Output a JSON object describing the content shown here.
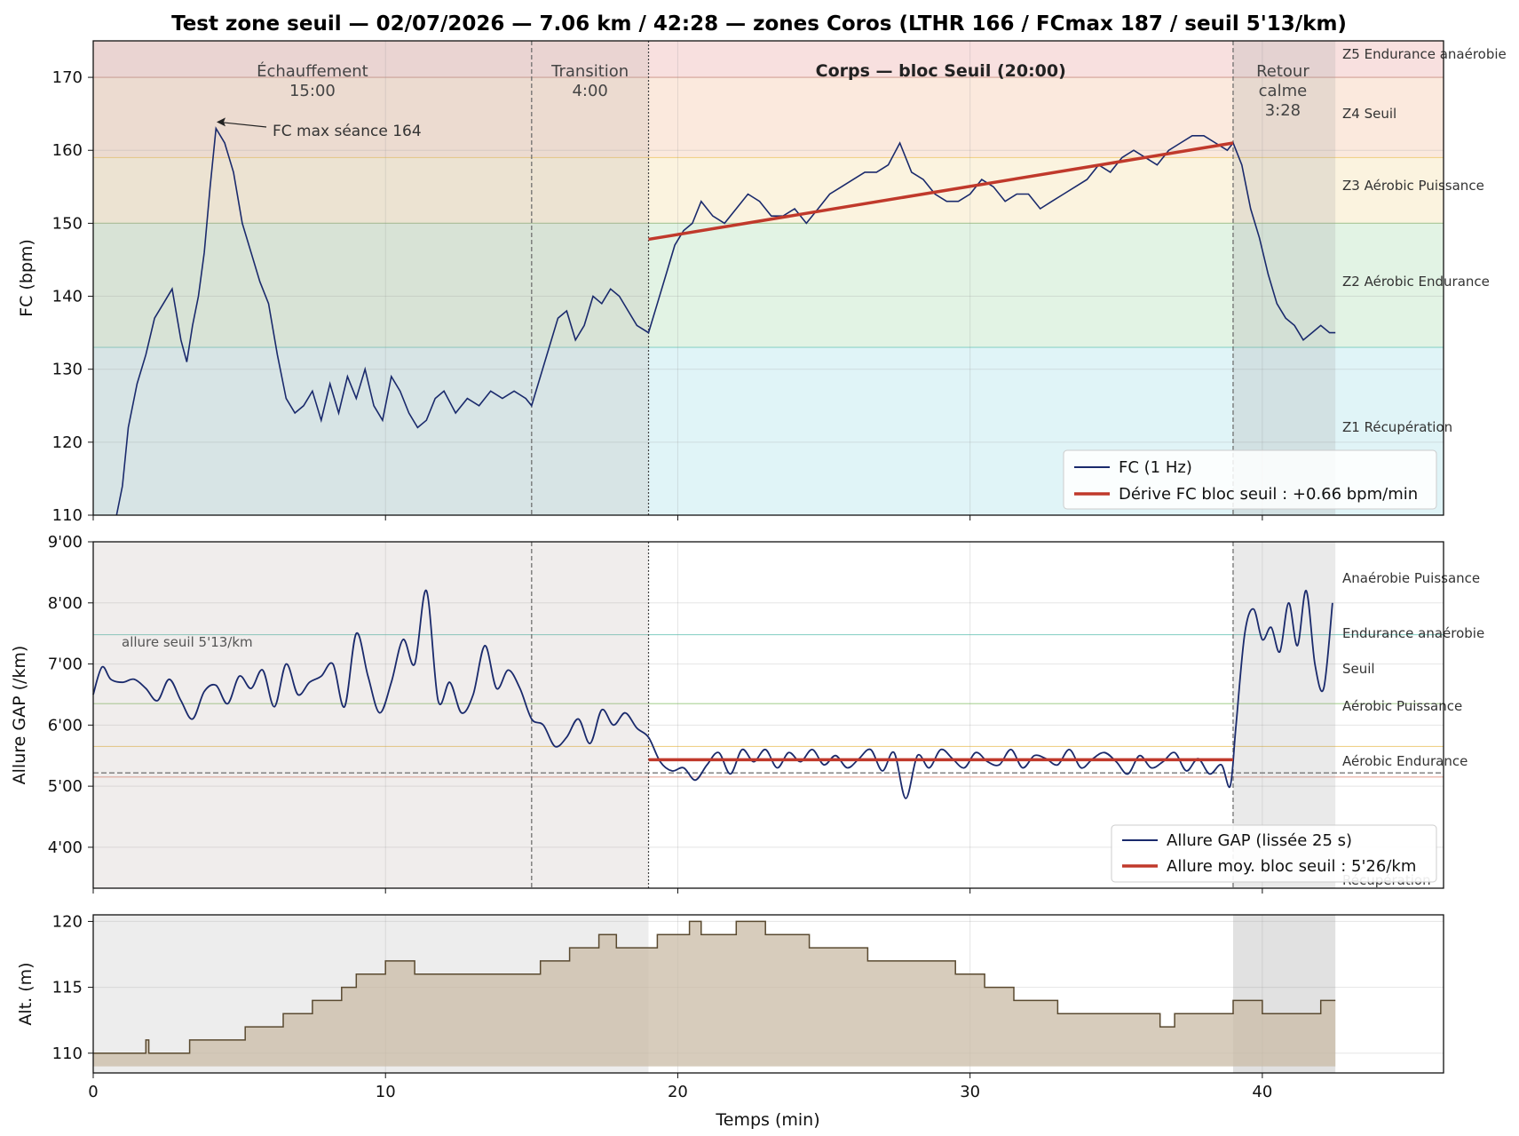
{
  "title": "Test zone seuil — 02/07/2026 — 7.06 km / 42:28 — zones Coros (LTHR 166 / FCmax 187 / seuil 5'13/km)",
  "x_axis": {
    "label": "Temps (min)",
    "range": [
      0,
      46.2
    ],
    "ticks": [
      0,
      10,
      20,
      30,
      40
    ],
    "tick_labels": [
      "0",
      "10",
      "20",
      "30",
      "40"
    ]
  },
  "phases": [
    {
      "name": "Échauffement",
      "duration": "15:00",
      "start": 0,
      "end": 15
    },
    {
      "name": "Transition",
      "duration": "4:00",
      "start": 15,
      "end": 19
    },
    {
      "name": "Corps — bloc Seuil (20:00)",
      "duration": "",
      "start": 19,
      "end": 39
    },
    {
      "name": "Retour",
      "name2": "calme",
      "duration": "3:28",
      "start": 39,
      "end": 42.5
    }
  ],
  "colors": {
    "hr_line": "#1a2a6c",
    "trend": "#c0392b",
    "alt_fill": "#c9bba5",
    "alt_line": "#5a4a30",
    "z1": "#e0f4f7",
    "z2": "#e2f3e4",
    "z3": "#fbf3df",
    "z4": "#fbe9dd",
    "z5": "#f8e0df"
  },
  "chart_data": [
    {
      "type": "line",
      "panel": "fc",
      "ylabel": "FC (bpm)",
      "ylim": [
        110,
        175
      ],
      "yticks": [
        110,
        120,
        130,
        140,
        150,
        160,
        170
      ],
      "zones": [
        {
          "name": "Z1 Récupération",
          "from": 110,
          "to": 133
        },
        {
          "name": "Z2 Aérobic Endurance",
          "from": 133,
          "to": 150
        },
        {
          "name": "Z3 Aérobic Puissance",
          "from": 150,
          "to": 159
        },
        {
          "name": "Z4 Seuil",
          "from": 159,
          "to": 170
        },
        {
          "name": "Z5 Endurance anaérobie",
          "from": 170,
          "to": 175
        }
      ],
      "series": [
        {
          "name": "FC (1 Hz)",
          "x": [
            0.8,
            1.0,
            1.2,
            1.5,
            1.8,
            2.1,
            2.4,
            2.7,
            3.0,
            3.2,
            3.4,
            3.6,
            3.8,
            4.0,
            4.2,
            4.5,
            4.8,
            5.1,
            5.4,
            5.7,
            6.0,
            6.3,
            6.6,
            6.9,
            7.2,
            7.5,
            7.8,
            8.1,
            8.4,
            8.7,
            9.0,
            9.3,
            9.6,
            9.9,
            10.2,
            10.5,
            10.8,
            11.1,
            11.4,
            11.7,
            12.0,
            12.4,
            12.8,
            13.2,
            13.6,
            14.0,
            14.4,
            14.8,
            15.0,
            15.3,
            15.6,
            15.9,
            16.2,
            16.5,
            16.8,
            17.1,
            17.4,
            17.7,
            18.0,
            18.3,
            18.6,
            19.0,
            19.3,
            19.6,
            19.9,
            20.2,
            20.5,
            20.8,
            21.2,
            21.6,
            22.0,
            22.4,
            22.8,
            23.2,
            23.6,
            24.0,
            24.4,
            24.8,
            25.2,
            25.6,
            26.0,
            26.4,
            26.8,
            27.2,
            27.6,
            28.0,
            28.4,
            28.8,
            29.2,
            29.6,
            30.0,
            30.4,
            30.8,
            31.2,
            31.6,
            32.0,
            32.4,
            32.8,
            33.2,
            33.6,
            34.0,
            34.4,
            34.8,
            35.2,
            35.6,
            36.0,
            36.4,
            36.8,
            37.2,
            37.6,
            38.0,
            38.4,
            38.8,
            39.0,
            39.3,
            39.6,
            39.9,
            40.2,
            40.5,
            40.8,
            41.1,
            41.4,
            41.7,
            42.0,
            42.3,
            42.5
          ],
          "values": [
            110,
            114,
            122,
            128,
            132,
            137,
            139,
            141,
            134,
            131,
            136,
            140,
            146,
            155,
            163,
            161,
            157,
            150,
            146,
            142,
            139,
            132,
            126,
            124,
            125,
            127,
            123,
            128,
            124,
            129,
            126,
            130,
            125,
            123,
            129,
            127,
            124,
            122,
            123,
            126,
            127,
            124,
            126,
            125,
            127,
            126,
            127,
            126,
            125,
            129,
            133,
            137,
            138,
            134,
            136,
            140,
            139,
            141,
            140,
            138,
            136,
            135,
            139,
            143,
            147,
            149,
            150,
            153,
            151,
            150,
            152,
            154,
            153,
            151,
            151,
            152,
            150,
            152,
            154,
            155,
            156,
            157,
            157,
            158,
            161,
            157,
            156,
            154,
            153,
            153,
            154,
            156,
            155,
            153,
            154,
            154,
            152,
            153,
            154,
            155,
            156,
            158,
            157,
            159,
            160,
            159,
            158,
            160,
            161,
            162,
            162,
            161,
            160,
            161,
            158,
            152,
            148,
            143,
            139,
            137,
            136,
            134,
            135,
            136,
            135,
            135
          ]
        },
        {
          "name": "Dérive FC bloc seuil : +0.66 bpm/min",
          "x": [
            19,
            39
          ],
          "values": [
            147.8,
            161.0
          ]
        }
      ],
      "annotations": [
        {
          "text": "FC max séance 164",
          "x": 4.1,
          "y": 164
        }
      ],
      "legend": "bottom-right"
    },
    {
      "type": "line",
      "panel": "allure",
      "ylabel": "Allure GAP (/km)",
      "ylim": [
        9.0,
        3.33
      ],
      "yticks": [
        4,
        5,
        6,
        7,
        8,
        9
      ],
      "ytick_labels": [
        "4'00",
        "5'00",
        "6'00",
        "7'00",
        "8'00",
        "9'00"
      ],
      "zones": [
        {
          "name": "Récupération",
          "from": 9.0,
          "to": 7.48
        },
        {
          "name": "Aérobic Endurance",
          "from": 7.48,
          "to": 6.35
        },
        {
          "name": "Aérobic Puissance",
          "from": 6.35,
          "to": 5.65
        },
        {
          "name": "Seuil",
          "from": 5.65,
          "to": 5.15
        },
        {
          "name": "Endurance anaérobie",
          "from": 5.15,
          "to": 4.6
        },
        {
          "name": "Anaérobie Puissance",
          "from": 4.6,
          "to": 3.33
        }
      ],
      "threshold": {
        "label": "allure seuil 5'13/km",
        "value": 5.217
      },
      "series": [
        {
          "name": "Allure GAP (lissée 25 s)",
          "x": [
            0,
            0.3,
            0.6,
            1.0,
            1.4,
            1.8,
            2.2,
            2.6,
            3.0,
            3.4,
            3.8,
            4.2,
            4.6,
            5.0,
            5.4,
            5.8,
            6.2,
            6.6,
            7.0,
            7.4,
            7.8,
            8.2,
            8.6,
            9.0,
            9.4,
            9.8,
            10.2,
            10.6,
            11.0,
            11.4,
            11.8,
            12.2,
            12.6,
            13.0,
            13.4,
            13.8,
            14.2,
            14.6,
            15.0,
            15.4,
            15.8,
            16.2,
            16.6,
            17.0,
            17.4,
            17.8,
            18.2,
            18.6,
            19.0,
            19.4,
            19.8,
            20.2,
            20.6,
            21.0,
            21.4,
            21.8,
            22.2,
            22.6,
            23.0,
            23.4,
            23.8,
            24.2,
            24.6,
            25.0,
            25.4,
            25.8,
            26.2,
            26.6,
            27.0,
            27.4,
            27.8,
            28.2,
            28.6,
            29.0,
            29.4,
            29.8,
            30.2,
            30.6,
            31.0,
            31.4,
            31.8,
            32.2,
            32.6,
            33.0,
            33.4,
            33.8,
            34.2,
            34.6,
            35.0,
            35.4,
            35.8,
            36.2,
            36.6,
            37.0,
            37.4,
            37.8,
            38.2,
            38.6,
            38.9,
            39.1,
            39.4,
            39.7,
            40.0,
            40.3,
            40.6,
            40.9,
            41.2,
            41.5,
            41.8,
            42.1,
            42.4
          ],
          "values": [
            6.5,
            6.95,
            6.75,
            6.7,
            6.75,
            6.6,
            6.4,
            6.75,
            6.4,
            6.1,
            6.55,
            6.65,
            6.35,
            6.8,
            6.6,
            6.9,
            6.3,
            7.0,
            6.5,
            6.7,
            6.8,
            7.0,
            6.3,
            7.5,
            6.8,
            6.2,
            6.7,
            7.4,
            7.0,
            8.2,
            6.4,
            6.7,
            6.2,
            6.5,
            7.3,
            6.6,
            6.9,
            6.6,
            6.1,
            6.0,
            5.65,
            5.8,
            6.1,
            5.7,
            6.25,
            6.0,
            6.2,
            5.95,
            5.8,
            5.4,
            5.25,
            5.3,
            5.1,
            5.35,
            5.55,
            5.2,
            5.6,
            5.4,
            5.6,
            5.3,
            5.55,
            5.4,
            5.6,
            5.35,
            5.5,
            5.3,
            5.45,
            5.6,
            5.25,
            5.55,
            4.8,
            5.5,
            5.3,
            5.6,
            5.45,
            5.3,
            5.55,
            5.4,
            5.35,
            5.6,
            5.3,
            5.5,
            5.45,
            5.35,
            5.6,
            5.3,
            5.45,
            5.55,
            5.4,
            5.2,
            5.5,
            5.3,
            5.4,
            5.55,
            5.25,
            5.45,
            5.2,
            5.35,
            5.0,
            6.0,
            7.5,
            7.9,
            7.4,
            7.6,
            7.2,
            8.0,
            7.3,
            8.2,
            7.0,
            6.6,
            8.0
          ]
        },
        {
          "name": "Allure moy. bloc seuil : 5'26/km",
          "x": [
            19,
            39
          ],
          "values": [
            5.433,
            5.433
          ]
        }
      ],
      "legend": "bottom-right"
    },
    {
      "type": "area",
      "panel": "alt",
      "ylabel": "Alt. (m)",
      "ylim": [
        108.5,
        120.5
      ],
      "yticks": [
        110,
        115,
        120
      ],
      "series": [
        {
          "name": "Alt.",
          "x": [
            0,
            1.8,
            1.9,
            2.0,
            2.4,
            2.5,
            3.3,
            3.4,
            3.7,
            3.8,
            4.5,
            5.2,
            5.5,
            5.9,
            6.0,
            6.2,
            6.5,
            6.8,
            7.2,
            7.4,
            7.5,
            8.0,
            8.3,
            8.5,
            8.7,
            9.0,
            9.3,
            9.7,
            10.0,
            10.3,
            10.5,
            10.7,
            11.0,
            11.3,
            11.6,
            11.9,
            12.3,
            12.7,
            13.0,
            13.4,
            13.8,
            14.2,
            14.6,
            14.9,
            15.3,
            15.6,
            15.9,
            16.3,
            16.6,
            17.0,
            17.3,
            17.6,
            17.9,
            18.3,
            18.6,
            19.0,
            19.3,
            19.6,
            20.0,
            20.4,
            20.8,
            21.2,
            21.6,
            22.0,
            22.5,
            23.0,
            23.5,
            24.0,
            24.5,
            25.0,
            25.5,
            26.0,
            26.5,
            27.0,
            27.5,
            28.0,
            28.5,
            29.0,
            29.5,
            30.0,
            30.5,
            31.0,
            31.5,
            32.0,
            32.5,
            33.0,
            33.5,
            34.0,
            34.5,
            35.0,
            35.5,
            36.0,
            36.5,
            37.0,
            37.5,
            38.0,
            38.5,
            39.0,
            39.5,
            40.0,
            40.5,
            41.0,
            41.5,
            42.0,
            42.5
          ],
          "values": [
            110,
            111,
            110,
            110,
            110,
            110,
            111,
            111,
            111,
            111,
            111,
            112,
            112,
            112,
            112,
            112,
            113,
            113,
            113,
            113,
            114,
            114,
            114,
            115,
            115,
            116,
            116,
            116,
            117,
            117,
            117,
            117,
            116,
            116,
            116,
            116,
            116,
            116,
            116,
            116,
            116,
            116,
            116,
            116,
            117,
            117,
            117,
            118,
            118,
            118,
            119,
            119,
            118,
            118,
            118,
            118,
            119,
            119,
            119,
            120,
            119,
            119,
            119,
            120,
            120,
            119,
            119,
            119,
            118,
            118,
            118,
            118,
            117,
            117,
            117,
            117,
            117,
            117,
            116,
            116,
            115,
            115,
            114,
            114,
            114,
            113,
            113,
            113,
            113,
            113,
            113,
            113,
            112,
            113,
            113,
            113,
            113,
            114,
            114,
            113,
            113,
            113,
            113,
            114,
            114
          ]
        }
      ]
    }
  ]
}
